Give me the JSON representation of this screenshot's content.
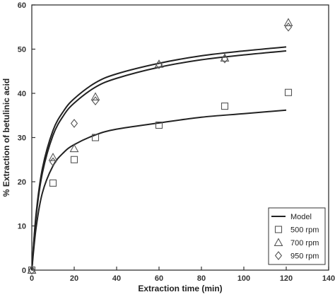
{
  "chart_data": {
    "type": "scatter",
    "title": "",
    "xlabel": "Extraction time (min)",
    "ylabel": "% Extraction of betulinic acid",
    "xlim": [
      0,
      140
    ],
    "ylim": [
      0,
      60
    ],
    "xticks": [
      "0",
      "20",
      "40",
      "60",
      "80",
      "100",
      "120",
      "140"
    ],
    "yticks": [
      "0",
      "10",
      "20",
      "30",
      "40",
      "50",
      "60"
    ],
    "grid": false,
    "legend_position": "bottom-right",
    "legend": [
      {
        "label": "Model",
        "marker": "line"
      },
      {
        "label": "500 rpm",
        "marker": "square"
      },
      {
        "label": "700 rpm",
        "marker": "triangle"
      },
      {
        "label": "950 rpm",
        "marker": "diamond"
      }
    ],
    "series": [
      {
        "name": "500 rpm",
        "marker": "square",
        "x": [
          0,
          10,
          20,
          30,
          60,
          91,
          121
        ],
        "y": [
          0,
          19.7,
          25.0,
          30.0,
          32.8,
          37.1,
          40.2
        ]
      },
      {
        "name": "700 rpm",
        "marker": "triangle",
        "x": [
          0,
          10,
          20,
          30,
          60,
          91,
          121
        ],
        "y": [
          0,
          25.5,
          27.5,
          39.2,
          46.6,
          48.0,
          56.0
        ]
      },
      {
        "name": "950 rpm",
        "marker": "diamond",
        "x": [
          0,
          10,
          20,
          30,
          60,
          91,
          121
        ],
        "y": [
          0,
          24.5,
          33.2,
          38.3,
          46.5,
          47.8,
          55.0
        ]
      }
    ],
    "model_curves": [
      {
        "name": "Model (500 rpm)",
        "x": [
          0,
          2,
          5,
          10,
          15,
          20,
          30,
          40,
          60,
          80,
          100,
          120
        ],
        "y": [
          0,
          9.5,
          17.5,
          23.6,
          26.6,
          28.4,
          30.6,
          31.9,
          33.3,
          34.6,
          35.4,
          36.2
        ]
      },
      {
        "name": "Model (700 rpm)",
        "x": [
          0,
          2,
          5,
          10,
          15,
          20,
          30,
          40,
          60,
          80,
          100,
          120
        ],
        "y": [
          0,
          12.0,
          22.0,
          30.5,
          35.0,
          37.8,
          41.4,
          43.4,
          45.9,
          47.6,
          48.7,
          49.6
        ]
      },
      {
        "name": "Model (950 rpm)",
        "x": [
          0,
          2,
          5,
          10,
          15,
          20,
          30,
          40,
          60,
          80,
          100,
          120
        ],
        "y": [
          0,
          12.6,
          23.0,
          31.6,
          36.0,
          38.8,
          42.4,
          44.4,
          46.8,
          48.5,
          49.6,
          50.5
        ]
      }
    ]
  }
}
